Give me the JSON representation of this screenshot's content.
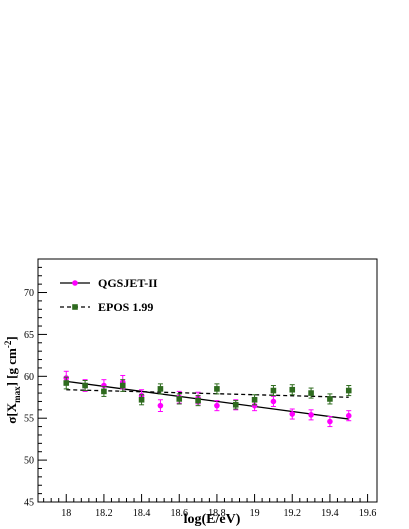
{
  "chart_data": {
    "type": "scatter",
    "xlabel": "log(E/eV)",
    "ylabel": "σ[X_max] [g cm^-2]",
    "ylabel_parts": {
      "base": "σ[X",
      "sub": "max",
      "mid": "] [g cm",
      "sup": "-2",
      "end": "]"
    },
    "xlim": [
      17.85,
      19.65
    ],
    "ylim": [
      45,
      74
    ],
    "x_ticks": [
      "18",
      "18.2",
      "18.4",
      "18.6",
      "18.8",
      "19",
      "19.2",
      "19.4",
      "19.6"
    ],
    "y_ticks": [
      "45",
      "50",
      "55",
      "60",
      "65",
      "70"
    ],
    "grid": false,
    "legend_position": "top-left",
    "series": [
      {
        "name": "QGSJET-II",
        "color": "#ff00ff",
        "marker": "circle",
        "fit_style": "solid",
        "x": [
          18.0,
          18.1,
          18.2,
          18.3,
          18.4,
          18.5,
          18.6,
          18.7,
          18.8,
          18.9,
          19.0,
          19.1,
          19.2,
          19.3,
          19.4,
          19.5
        ],
        "y": [
          59.8,
          58.9,
          58.9,
          59.3,
          57.7,
          56.5,
          57.5,
          57.4,
          56.5,
          56.6,
          56.5,
          57.0,
          55.5,
          55.4,
          54.6,
          55.3
        ],
        "err": [
          0.8,
          0.7,
          0.7,
          0.8,
          0.7,
          0.7,
          0.7,
          0.7,
          0.6,
          0.6,
          0.6,
          0.6,
          0.6,
          0.6,
          0.6,
          0.6
        ],
        "fit": {
          "x": [
            18.0,
            19.5
          ],
          "y": [
            59.4,
            54.9
          ]
        }
      },
      {
        "name": "EPOS 1.99",
        "color": "#2e6b1e",
        "marker": "square",
        "fit_style": "dashed",
        "x": [
          18.0,
          18.1,
          18.2,
          18.3,
          18.4,
          18.5,
          18.6,
          18.7,
          18.8,
          18.9,
          19.0,
          19.1,
          19.2,
          19.3,
          19.4,
          19.5
        ],
        "y": [
          59.2,
          58.9,
          58.2,
          58.9,
          57.2,
          58.5,
          57.3,
          57.1,
          58.5,
          56.6,
          57.2,
          58.3,
          58.4,
          58.0,
          57.3,
          58.3
        ],
        "err": [
          0.7,
          0.6,
          0.6,
          0.7,
          0.6,
          0.6,
          0.6,
          0.6,
          0.6,
          0.5,
          0.6,
          0.6,
          0.6,
          0.6,
          0.6,
          0.6
        ],
        "fit": {
          "x": [
            18.0,
            19.5
          ],
          "y": [
            58.4,
            57.5
          ]
        }
      }
    ]
  }
}
